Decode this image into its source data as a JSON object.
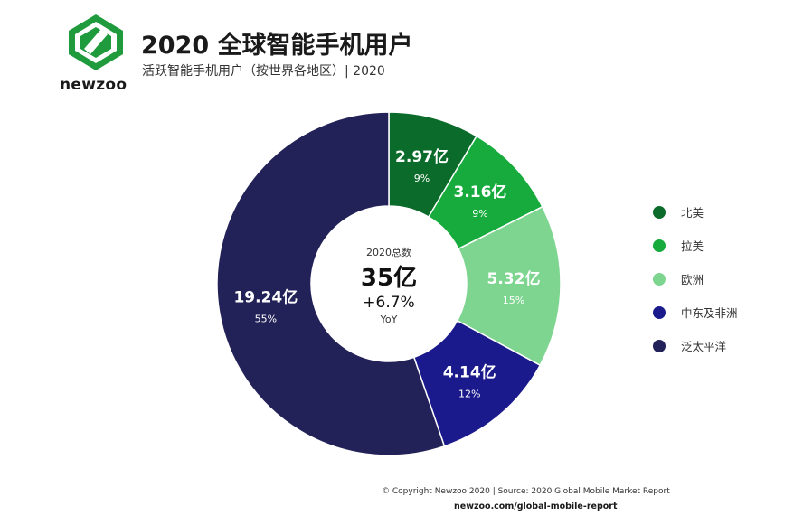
{
  "brand": {
    "name": "newzoo"
  },
  "header": {
    "title": "2020 全球智能手机用户",
    "subtitle": "活跃智能手机用户（按世界各地区）| 2020"
  },
  "center": {
    "label": "2020总数",
    "value": "35亿",
    "growth": "+6.7%",
    "growth_label": "YoY"
  },
  "colors": {
    "north_america": "#0b6b2a",
    "latin_america": "#16ab3c",
    "europe": "#7dd58f",
    "mea": "#1a1a8c",
    "apac": "#232258"
  },
  "chart_data": {
    "type": "pie",
    "subtype": "donut",
    "title": "2020 全球智能手机用户",
    "subtitle": "活跃智能手机用户（按世界各地区）| 2020",
    "slices": [
      {
        "name": "北美",
        "value": 2.97,
        "value_label": "2.97亿",
        "percent_label": "9%",
        "color": "#0b6b2a"
      },
      {
        "name": "拉美",
        "value": 3.16,
        "value_label": "3.16亿",
        "percent_label": "9%",
        "color": "#16ab3c"
      },
      {
        "name": "欧洲",
        "value": 5.32,
        "value_label": "5.32亿",
        "percent_label": "15%",
        "color": "#7dd58f"
      },
      {
        "name": "中东及非洲",
        "value": 4.14,
        "value_label": "4.14亿",
        "percent_label": "12%",
        "color": "#1a1a8c"
      },
      {
        "name": "泛太平洋",
        "value": 19.24,
        "value_label": "19.24亿",
        "percent_label": "55%",
        "color": "#232258"
      }
    ],
    "unit": "亿",
    "legend_position": "right"
  },
  "footer": {
    "copyright": "© Copyright Newzoo 2020 | Source: 2020 Global Mobile Market Report",
    "url": "newzoo.com/global-mobile-report"
  }
}
